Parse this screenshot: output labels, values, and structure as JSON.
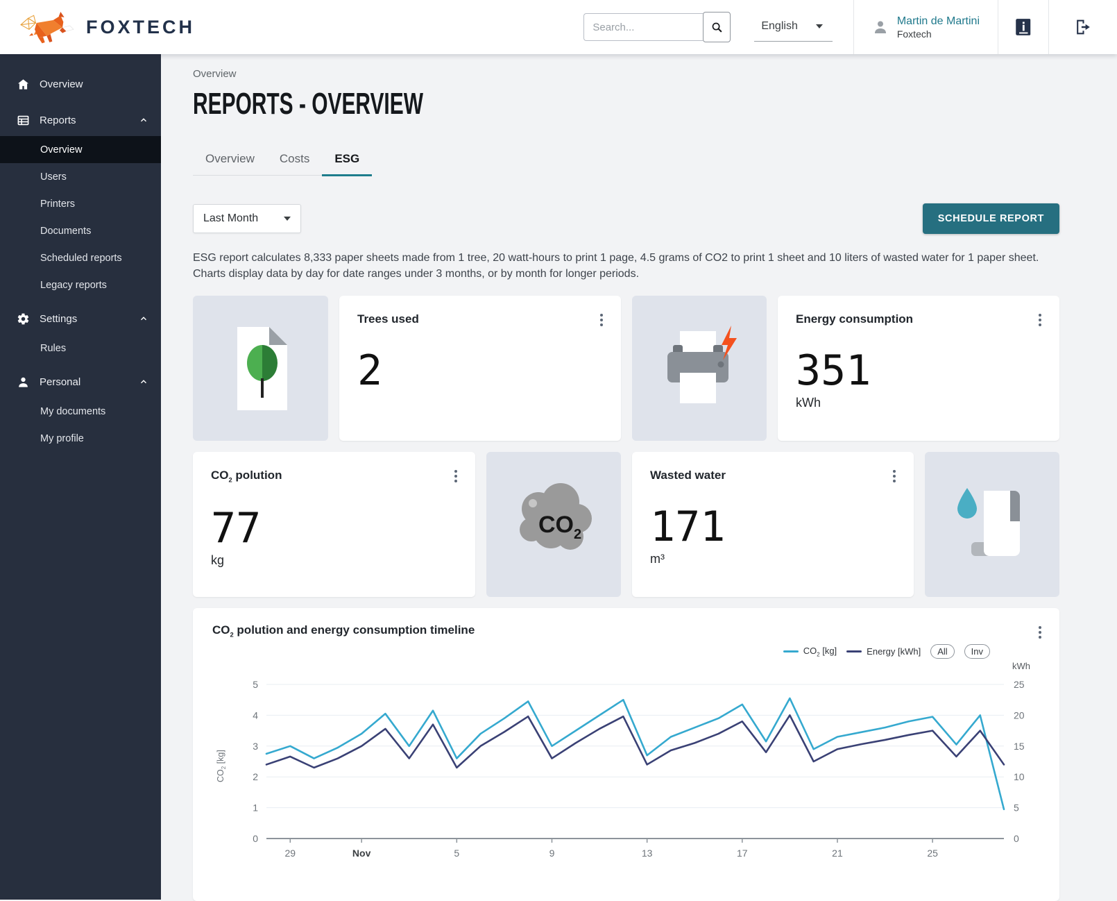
{
  "header": {
    "brand": "FOXTECH",
    "search_placeholder": "Search...",
    "language": "English",
    "user_name": "Martin de Martini",
    "user_org": "Foxtech"
  },
  "sidebar": {
    "overview": "Overview",
    "reports": "Reports",
    "reports_children": [
      "Overview",
      "Users",
      "Printers",
      "Documents",
      "Scheduled reports",
      "Legacy reports"
    ],
    "settings": "Settings",
    "settings_children": [
      "Rules"
    ],
    "personal": "Personal",
    "personal_children": [
      "My documents",
      "My profile"
    ]
  },
  "page": {
    "breadcrumb": "Overview",
    "title": "REPORTS - OVERVIEW",
    "tabs": [
      "Overview",
      "Costs",
      "ESG"
    ],
    "period": "Last Month",
    "schedule_button": "SCHEDULE REPORT",
    "description": "ESG report calculates 8,333 paper sheets made from 1 tree, 20 watt-hours to print 1 page, 4.5 grams of CO2 to print 1 sheet and 10 liters of wasted water for 1 paper sheet. Charts display data by day for date ranges under 3 months, or by month for longer periods."
  },
  "stats": {
    "trees": {
      "title": "Trees used",
      "value": "2"
    },
    "energy": {
      "title": "Energy consumption",
      "value": "351",
      "unit": "kWh"
    },
    "co2": {
      "title_pre": "CO",
      "title_sub": "2",
      "title_post": " polution",
      "value": "77",
      "unit": "kg"
    },
    "water": {
      "title": "Wasted water",
      "value": "171",
      "unit": "m³"
    }
  },
  "chart_data": {
    "type": "line",
    "title_pre": "CO",
    "title_sub": "2",
    "title_post": " polution and energy consumption timeline",
    "legend": [
      {
        "label_pre": "CO",
        "label_sub": "2",
        "label_post": " [kg]",
        "color": "#35a9cf"
      },
      {
        "label": "Energy [kWh]",
        "color": "#3a4175"
      }
    ],
    "buttons": [
      "All",
      "Inv"
    ],
    "left_axis": {
      "label_pre": "CO",
      "label_sub": "2",
      "label_post": " [kg]",
      "ticks": [
        0,
        1,
        2,
        3,
        4,
        5
      ],
      "max": 5
    },
    "right_axis": {
      "label": "kWh",
      "ticks": [
        0,
        5,
        10,
        15,
        20,
        25
      ],
      "max": 25
    },
    "x_ticks": [
      {
        "index": 1,
        "label": "29"
      },
      {
        "index": 4,
        "label": "Nov",
        "bold": true
      },
      {
        "index": 8,
        "label": "5"
      },
      {
        "index": 12,
        "label": "9"
      },
      {
        "index": 16,
        "label": "13"
      },
      {
        "index": 20,
        "label": "17"
      },
      {
        "index": 24,
        "label": "21"
      },
      {
        "index": 28,
        "label": "25"
      }
    ],
    "series": [
      {
        "name": "CO2 [kg]",
        "axis": "left",
        "color": "#35a9cf",
        "values": [
          2.75,
          3.0,
          2.6,
          2.95,
          3.4,
          4.05,
          3.0,
          4.15,
          2.6,
          3.4,
          3.9,
          4.45,
          3.0,
          3.5,
          4.0,
          4.5,
          2.7,
          3.3,
          3.6,
          3.9,
          4.35,
          3.15,
          4.55,
          2.9,
          3.3,
          3.45,
          3.6,
          3.8,
          3.95,
          3.05,
          4.0,
          0.95
        ]
      },
      {
        "name": "Energy [kWh]",
        "axis": "right",
        "color": "#3a4175",
        "values": [
          12,
          13.3,
          11.5,
          13,
          15,
          17.8,
          13,
          18.5,
          11.5,
          15,
          17.3,
          19.8,
          13,
          15.5,
          17.8,
          19.8,
          12,
          14.3,
          15.5,
          17,
          19,
          14,
          20,
          12.5,
          14.5,
          15.3,
          16,
          16.8,
          17.5,
          13.3,
          17.5,
          12
        ]
      }
    ]
  },
  "colors": {
    "accent_teal": "#1e7d8c",
    "co2_line": "#35a9cf",
    "energy_line": "#3a4175",
    "bolt_orange": "#f4511e"
  }
}
